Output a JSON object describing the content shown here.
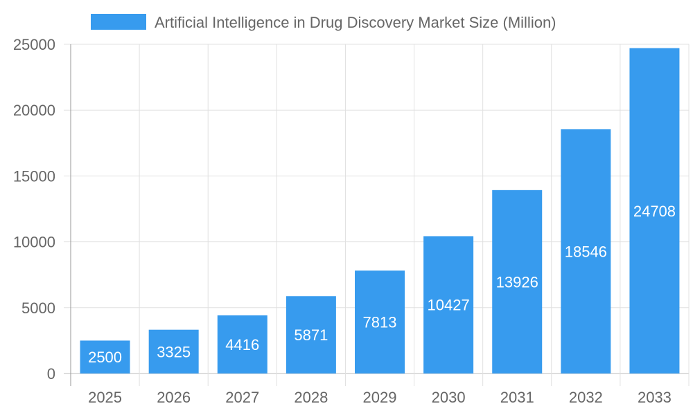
{
  "chart_data": {
    "type": "bar",
    "title": "",
    "legend": [
      {
        "label": "Artificial Intelligence in Drug Discovery Market Size (Million)",
        "color": "#379bee"
      }
    ],
    "legend_position": "top",
    "categories": [
      "2025",
      "2026",
      "2027",
      "2028",
      "2029",
      "2030",
      "2031",
      "2032",
      "2033"
    ],
    "series": [
      {
        "name": "Artificial Intelligence in Drug Discovery Market Size (Million)",
        "values": [
          2500,
          3325,
          4416,
          5871,
          7813,
          10427,
          13926,
          18546,
          24708
        ]
      }
    ],
    "y_ticks": [
      "0",
      "5000",
      "10000",
      "15000",
      "20000",
      "25000"
    ],
    "ylim": [
      0,
      25000
    ],
    "xlabel": "",
    "ylabel": "",
    "grid": true,
    "data_labels": true,
    "bar_color": "#379bee"
  }
}
